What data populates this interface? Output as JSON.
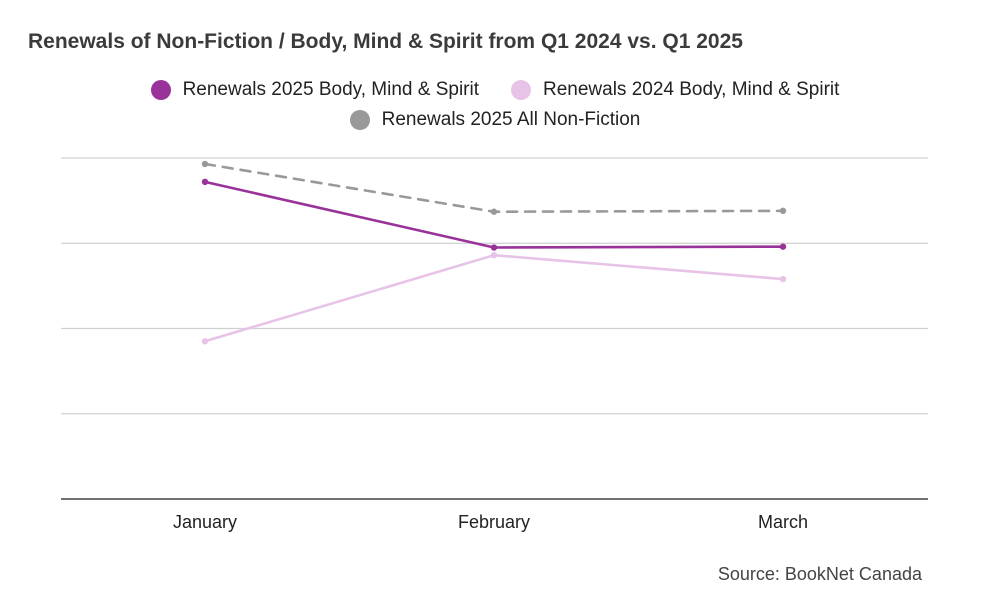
{
  "chart_data": {
    "type": "line",
    "title": "Renewals of Non-Fiction / Body, Mind & Spirit from Q1 2024 vs. Q1 2025",
    "categories": [
      "January",
      "February",
      "March"
    ],
    "xlabel": "",
    "ylabel": "",
    "y_tick_labels_shown": false,
    "grid": true,
    "legend_position": "top-center",
    "series": [
      {
        "name": "Renewals 2025 Body, Mind & Spirit",
        "values": [
          3.72,
          2.95,
          2.96
        ],
        "color": "#993399",
        "dash": "solid"
      },
      {
        "name": "Renewals 2024 Body, Mind & Spirit",
        "values": [
          1.85,
          2.86,
          2.58
        ],
        "color": "#e8c3e8",
        "dash": "solid"
      },
      {
        "name": "Renewals 2025 All Non-Fiction",
        "values": [
          3.93,
          3.37,
          3.38
        ],
        "color": "#999999",
        "dash": "dashed"
      }
    ],
    "source": "Source: BookNet Canada"
  }
}
